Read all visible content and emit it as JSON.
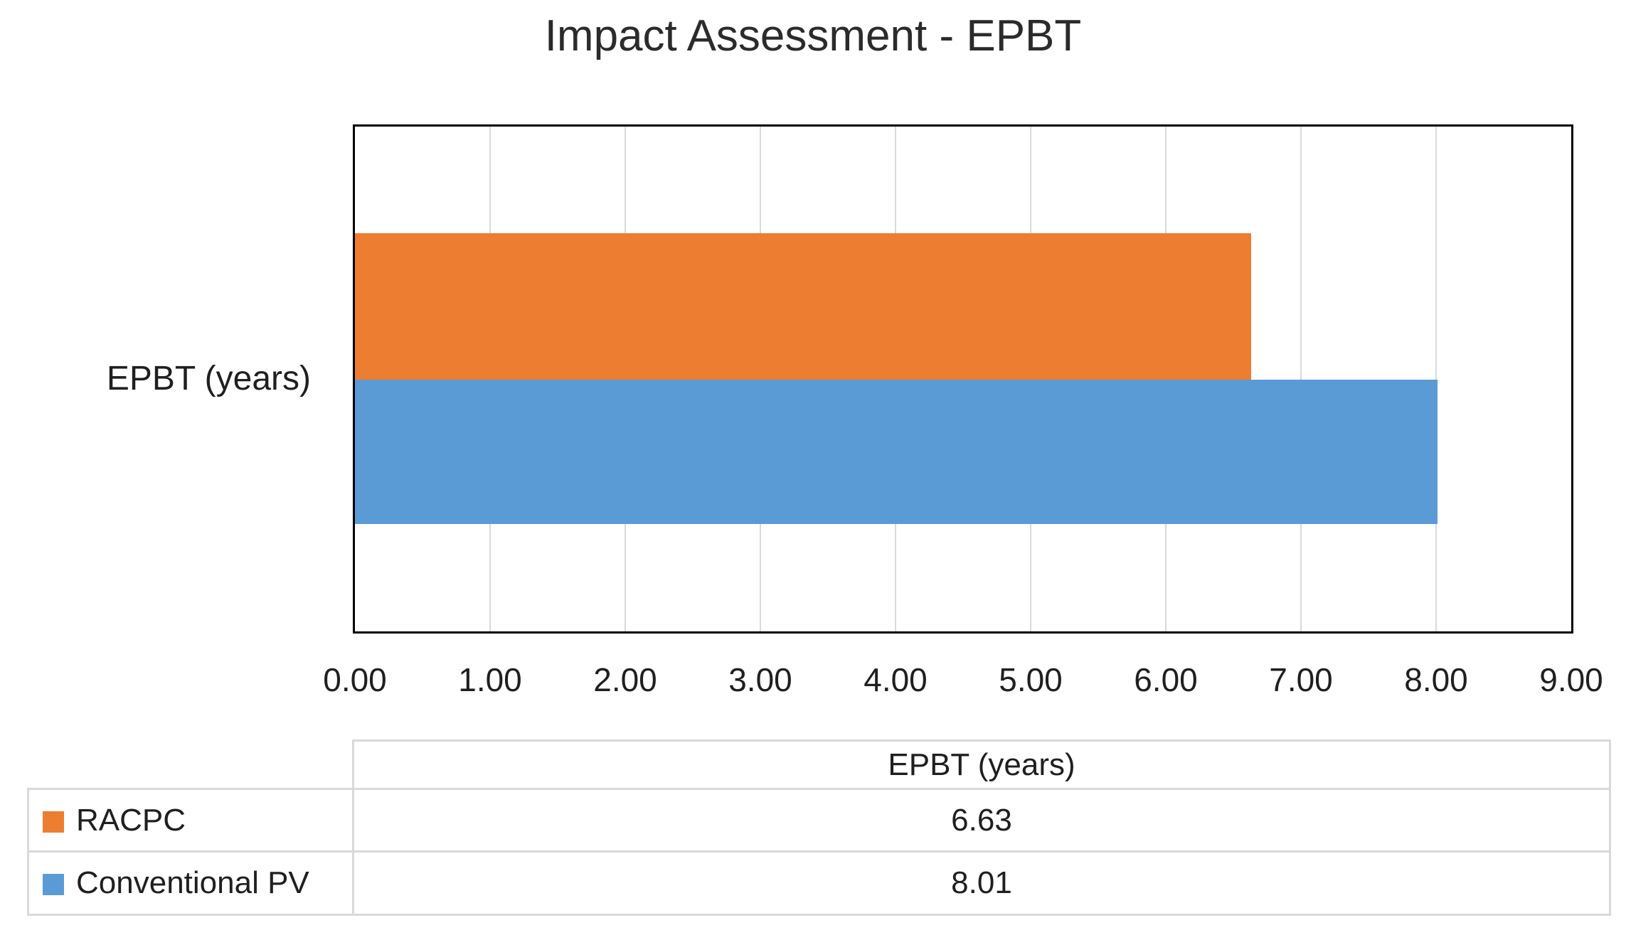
{
  "chart_data": {
    "type": "bar",
    "orientation": "horizontal",
    "title": "Impact Assessment - EPBT",
    "categories": [
      "EPBT (years)"
    ],
    "series": [
      {
        "name": "RACPC",
        "values": [
          6.63
        ],
        "color": "#ED7D31"
      },
      {
        "name": "Conventional PV",
        "values": [
          8.01
        ],
        "color": "#5B9BD5"
      }
    ],
    "xlim": [
      0,
      9
    ],
    "x_ticks": [
      "0.00",
      "1.00",
      "2.00",
      "3.00",
      "4.00",
      "5.00",
      "6.00",
      "7.00",
      "8.00",
      "9.00"
    ],
    "grid": "vertical-major",
    "gridline_color": "#D9D9D9",
    "plot_border_color": "#000000",
    "legend_position": "data-table-left"
  },
  "data_table": {
    "value_column_header": "EPBT (years)",
    "rows": [
      {
        "label": "RACPC",
        "value": "6.63",
        "color": "#ED7D31"
      },
      {
        "label": "Conventional PV",
        "value": "8.01",
        "color": "#5B9BD5"
      }
    ],
    "border_color": "#D9D9D9"
  }
}
